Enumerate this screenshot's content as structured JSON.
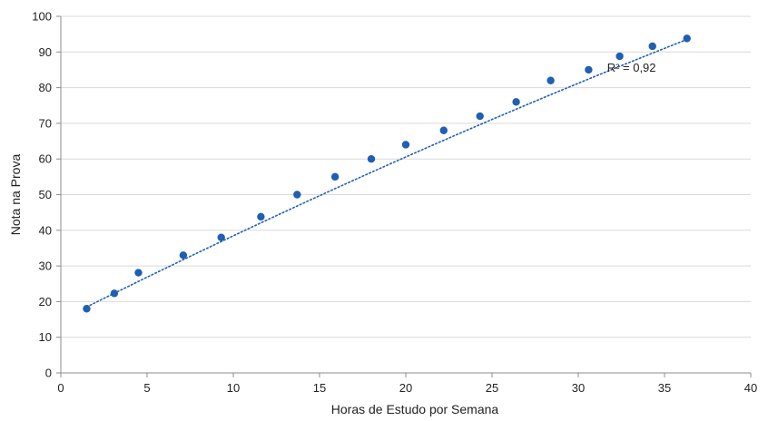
{
  "chart_data": {
    "type": "scatter",
    "title": "",
    "xlabel": "Horas de Estudo por Semana",
    "ylabel": "Nota na Prova",
    "xlim": [
      0,
      40
    ],
    "ylim": [
      0,
      100
    ],
    "xticks": [
      0,
      5,
      10,
      15,
      20,
      25,
      30,
      35,
      40
    ],
    "yticks": [
      0,
      10,
      20,
      30,
      40,
      50,
      60,
      70,
      80,
      90,
      100
    ],
    "grid": "horizontal",
    "legend": "none",
    "series": [
      {
        "points": [
          [
            1.5,
            18
          ],
          [
            3.1,
            22.3
          ],
          [
            4.5,
            28.1
          ],
          [
            7.1,
            33
          ],
          [
            9.3,
            38
          ],
          [
            11.6,
            43.8
          ],
          [
            13.7,
            50
          ],
          [
            15.9,
            55
          ],
          [
            18.0,
            60
          ],
          [
            20.0,
            64
          ],
          [
            22.2,
            68
          ],
          [
            24.3,
            72
          ],
          [
            26.4,
            76
          ],
          [
            28.4,
            82
          ],
          [
            30.6,
            85
          ],
          [
            32.4,
            88.8
          ],
          [
            34.3,
            91.6
          ],
          [
            36.3,
            93.8
          ]
        ],
        "color": "#1f5fb4"
      }
    ],
    "trendline": {
      "style": "dotted",
      "color": "#1f5fb4",
      "x_range": [
        1.5,
        36.3
      ],
      "y_at_x_min": 18.5,
      "y_at_x_max": 93.5
    },
    "annotation": "R² = 0,92",
    "annotation_at": [
      34.3,
      84.5
    ]
  }
}
